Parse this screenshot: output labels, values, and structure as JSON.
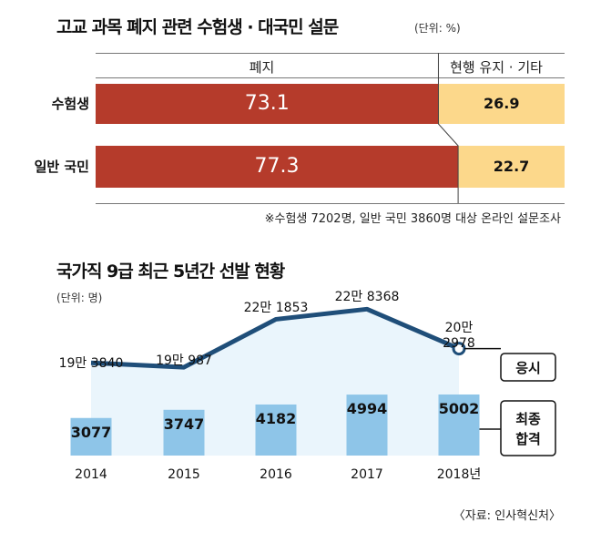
{
  "chart_data": [
    {
      "type": "bar",
      "orientation": "horizontal-stacked",
      "title": "고교 과목 폐지 관련 수험생 · 대국민 설문",
      "unit": "(단위: %)",
      "columns": [
        "폐지",
        "현행 유지 · 기타"
      ],
      "categories": [
        "수험생",
        "일반 국민"
      ],
      "series": [
        {
          "name": "폐지",
          "values": [
            73.1,
            77.3
          ],
          "labels": [
            "73.1",
            "77.3"
          ]
        },
        {
          "name": "현행 유지 · 기타",
          "values": [
            26.9,
            22.7
          ],
          "labels": [
            "26.9",
            "22.7"
          ]
        }
      ],
      "note": "※수험생 7202명, 일반 국민 3860명 대상 온라인 설문조사",
      "colors": {
        "abolish": "#b53b2b",
        "maintain": "#fcd88b",
        "divider": "#444444"
      }
    },
    {
      "type": "line+bar",
      "title": "국가직 9급 최근 5년간 선발 현황",
      "unit": "(단위: 명)",
      "categories": [
        "2014",
        "2015",
        "2016",
        "2017",
        "2018년"
      ],
      "series": [
        {
          "name": "응시",
          "type": "line",
          "values": [
            193840,
            190987,
            221853,
            228368,
            202978
          ],
          "labels": [
            "19만 3840",
            "19만 987",
            "22만 1853",
            "22만 8368",
            "20만\n2978"
          ]
        },
        {
          "name": "최종\n합격",
          "type": "bar",
          "values": [
            3077,
            3747,
            4182,
            4994,
            5002
          ],
          "labels": [
            "3077",
            "3747",
            "4182",
            "4994",
            "5002"
          ]
        }
      ],
      "line_ylim": [
        150000,
        235000
      ],
      "bar_ylim": [
        0,
        10000
      ],
      "source": "〈자료: 인사혁신처〉",
      "colors": {
        "line": "#1f4e79",
        "bar": "#8ec5e8",
        "area": "#eaf5fc"
      }
    }
  ]
}
